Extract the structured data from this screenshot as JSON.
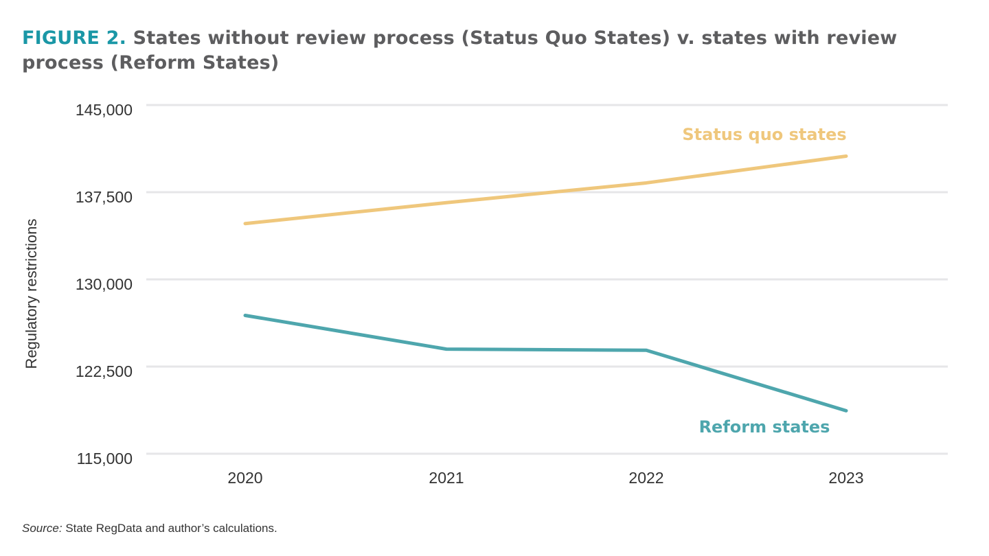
{
  "figure_label": "FIGURE 2.",
  "source_label": "Source:",
  "source_text": " State RegData and author’s calculations.",
  "chart_data": {
    "type": "line",
    "title": "States without review process (Status Quo States) v. states with review process (Reform States)",
    "xlabel": "",
    "ylabel": "Regulatory restrictions",
    "x": [
      "2020",
      "2021",
      "2022",
      "2023"
    ],
    "ylim": [
      115000,
      145000
    ],
    "yticks": [
      145000,
      137500,
      130000,
      122500,
      115000
    ],
    "ytick_labels": [
      "145,000",
      "137,500",
      "130,000",
      "122,500",
      "115,000"
    ],
    "grid": true,
    "series": [
      {
        "name": "Status quo states",
        "color": "#efc77c",
        "values": [
          134800,
          136600,
          138300,
          140600
        ]
      },
      {
        "name": "Reform states",
        "color": "#4ea6ad",
        "values": [
          126900,
          124000,
          123900,
          118700
        ]
      }
    ]
  }
}
